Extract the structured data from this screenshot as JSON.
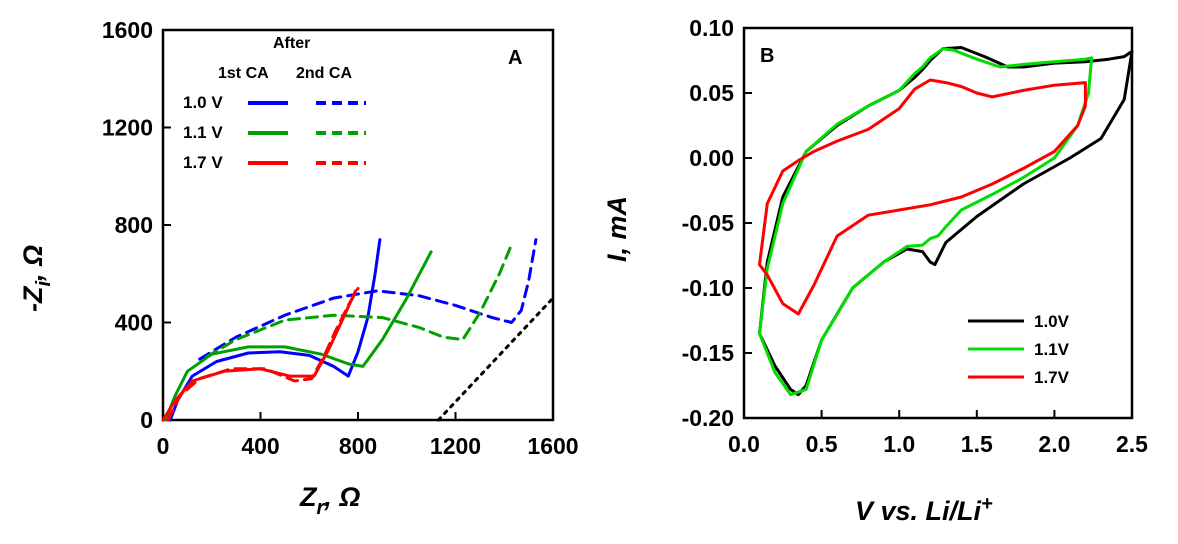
{
  "chart_data": [
    {
      "panel": "A",
      "type": "line",
      "title": "",
      "panel_label": "A",
      "xlabel": "Z",
      "xlabel_sub": "r",
      "xlabel_unit": ", Ω",
      "ylabel_prefix": "-Z",
      "ylabel_sub": "i",
      "ylabel_unit": ", Ω",
      "xlim": [
        0,
        1600
      ],
      "ylim": [
        0,
        1600
      ],
      "xticks": [
        "0",
        "400",
        "800",
        "1200",
        "1600"
      ],
      "yticks": [
        "0",
        "400",
        "800",
        "1200",
        "1600"
      ],
      "legend": {
        "header": "After",
        "col1": "1st CA",
        "col2": "2nd CA",
        "rows": [
          "1.0 V",
          "1.1 V",
          "1.7 V"
        ]
      },
      "series": [
        {
          "name": "1.0 V 1st CA",
          "color": "#0000ff",
          "dash": "solid",
          "x": [
            30,
            60,
            120,
            220,
            350,
            480,
            600,
            700,
            760,
            800,
            840,
            870,
            890
          ],
          "y": [
            0,
            80,
            180,
            240,
            275,
            280,
            265,
            220,
            180,
            280,
            420,
            600,
            740
          ]
        },
        {
          "name": "1.0 V 2nd CA",
          "color": "#0000ff",
          "dash": "dashed",
          "x": [
            150,
            300,
            500,
            700,
            880,
            1050,
            1200,
            1350,
            1430,
            1470,
            1500,
            1530
          ],
          "y": [
            250,
            340,
            430,
            500,
            530,
            510,
            470,
            420,
            400,
            450,
            570,
            740
          ]
        },
        {
          "name": "1.1 V 1st CA",
          "color": "#00a000",
          "dash": "solid",
          "x": [
            10,
            50,
            100,
            200,
            350,
            500,
            650,
            760,
            820,
            900,
            1000,
            1100
          ],
          "y": [
            0,
            100,
            200,
            270,
            300,
            300,
            270,
            230,
            220,
            330,
            500,
            690
          ]
        },
        {
          "name": "1.1 V 2nd CA",
          "color": "#00a000",
          "dash": "dashed",
          "x": [
            180,
            300,
            500,
            700,
            900,
            1050,
            1150,
            1230,
            1300,
            1380,
            1430
          ],
          "y": [
            260,
            330,
            410,
            430,
            420,
            380,
            340,
            330,
            440,
            600,
            720
          ]
        },
        {
          "name": "1.7 V 1st CA",
          "color": "#ff0000",
          "dash": "solid",
          "x": [
            0,
            50,
            120,
            250,
            400,
            520,
            620,
            680,
            740,
            790
          ],
          "y": [
            0,
            80,
            160,
            200,
            210,
            180,
            180,
            290,
            420,
            530
          ]
        },
        {
          "name": "1.7 V 2nd CA",
          "color": "#ff0000",
          "dash": "dashed",
          "x": [
            20,
            70,
            150,
            280,
            420,
            540,
            610,
            660,
            710,
            760,
            800
          ],
          "y": [
            0,
            100,
            170,
            210,
            210,
            160,
            170,
            260,
            370,
            470,
            540
          ]
        },
        {
          "name": "reference",
          "color": "#000000",
          "dash": "dotted",
          "x": [
            1130,
            1600
          ],
          "y": [
            0,
            500
          ]
        }
      ]
    },
    {
      "panel": "B",
      "type": "line",
      "title": "",
      "panel_label": "B",
      "xlabel": "V vs. Li/Li",
      "xlabel_sup": "+",
      "ylabel": "I, mA",
      "xlim": [
        0.0,
        2.5
      ],
      "ylim": [
        -0.2,
        0.1
      ],
      "xticks": [
        "0.0",
        "0.5",
        "1.0",
        "1.5",
        "2.0",
        "2.5"
      ],
      "yticks": [
        "-0.20",
        "-0.15",
        "-0.10",
        "-0.05",
        "0.00",
        "0.05",
        "0.10"
      ],
      "legend": [
        "1.0V",
        "1.1V",
        "1.7V"
      ],
      "series": [
        {
          "name": "1.0V",
          "color": "#000000",
          "x": [
            0.1,
            0.2,
            0.3,
            0.35,
            0.4,
            0.5,
            0.7,
            0.9,
            1.05,
            1.15,
            1.2,
            1.23,
            1.3,
            1.5,
            1.8,
            2.1,
            2.3,
            2.45,
            2.5,
            2.45,
            2.35,
            2.2,
            2.0,
            1.8,
            1.7,
            1.55,
            1.4,
            1.28,
            1.2,
            1.15,
            1.1,
            1.0,
            0.8,
            0.6,
            0.4,
            0.25,
            0.15,
            0.1
          ],
          "y": [
            -0.135,
            -0.16,
            -0.178,
            -0.182,
            -0.175,
            -0.14,
            -0.1,
            -0.08,
            -0.07,
            -0.072,
            -0.08,
            -0.082,
            -0.065,
            -0.045,
            -0.02,
            0.0,
            0.015,
            0.045,
            0.082,
            0.078,
            0.076,
            0.074,
            0.073,
            0.07,
            0.07,
            0.078,
            0.085,
            0.084,
            0.075,
            0.068,
            0.062,
            0.052,
            0.04,
            0.025,
            0.005,
            -0.03,
            -0.08,
            -0.135
          ]
        },
        {
          "name": "1.1V",
          "color": "#00dd00",
          "x": [
            0.1,
            0.2,
            0.3,
            0.4,
            0.5,
            0.7,
            0.9,
            1.05,
            1.15,
            1.2,
            1.25,
            1.3,
            1.4,
            1.6,
            1.8,
            2.0,
            2.15,
            2.22,
            2.24,
            2.2,
            2.0,
            1.8,
            1.65,
            1.5,
            1.35,
            1.28,
            1.2,
            1.15,
            1.1,
            1.0,
            0.8,
            0.6,
            0.4,
            0.25,
            0.15,
            0.1
          ],
          "y": [
            -0.135,
            -0.165,
            -0.182,
            -0.178,
            -0.14,
            -0.1,
            -0.08,
            -0.068,
            -0.067,
            -0.062,
            -0.06,
            -0.053,
            -0.04,
            -0.028,
            -0.015,
            0.0,
            0.025,
            0.05,
            0.077,
            0.076,
            0.074,
            0.072,
            0.07,
            0.076,
            0.083,
            0.084,
            0.077,
            0.07,
            0.065,
            0.052,
            0.04,
            0.026,
            0.005,
            -0.035,
            -0.085,
            -0.135
          ]
        },
        {
          "name": "1.7V",
          "color": "#ff0000",
          "x": [
            0.1,
            0.15,
            0.25,
            0.35,
            0.45,
            0.6,
            0.8,
            1.0,
            1.2,
            1.4,
            1.6,
            1.8,
            2.0,
            2.15,
            2.2,
            2.2,
            2.0,
            1.8,
            1.6,
            1.5,
            1.4,
            1.3,
            1.2,
            1.1,
            1.0,
            0.8,
            0.6,
            0.45,
            0.35,
            0.25,
            0.15,
            0.1
          ],
          "y": [
            -0.082,
            -0.09,
            -0.112,
            -0.12,
            -0.098,
            -0.06,
            -0.044,
            -0.04,
            -0.036,
            -0.03,
            -0.02,
            -0.008,
            0.005,
            0.025,
            0.04,
            0.058,
            0.056,
            0.052,
            0.047,
            0.05,
            0.055,
            0.058,
            0.06,
            0.053,
            0.038,
            0.022,
            0.013,
            0.005,
            -0.002,
            -0.01,
            -0.035,
            -0.082
          ]
        }
      ]
    }
  ]
}
